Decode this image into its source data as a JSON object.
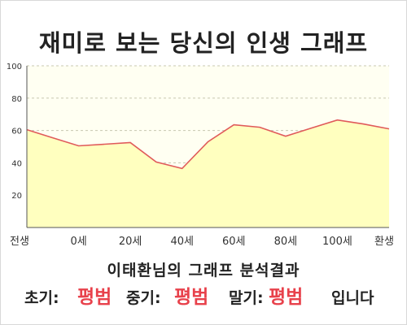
{
  "title": "재미로 보는 당신의 인생 그래프",
  "subtitle": "이태환님의 그래프 분석결과",
  "results": {
    "early_label": "초기:",
    "early_value": "평범",
    "middle_label": "중기:",
    "middle_value": "평범",
    "late_label": "말기:",
    "late_value": "평범",
    "suffix": "입니다"
  },
  "colors": {
    "line": "#e05a5a",
    "fill": "#ffffbf",
    "plot_bg": "#fffff2",
    "highlight": "#e8414b"
  },
  "chart_data": {
    "type": "area",
    "x": [
      "전생",
      "",
      "0세",
      "",
      "20세",
      "",
      "40세",
      "",
      "60세",
      "",
      "80세",
      "",
      "100세",
      "",
      "환생"
    ],
    "y": [
      60.5,
      55.5,
      50.5,
      51.5,
      52.5,
      40.5,
      36.5,
      53,
      63.5,
      62,
      56.5,
      61.5,
      66.5,
      64,
      61
    ],
    "ylim": [
      0,
      100
    ],
    "yticks": [
      "20",
      "40",
      "60",
      "80",
      "100"
    ],
    "grid": "horizontal dashed",
    "legend": "none"
  }
}
